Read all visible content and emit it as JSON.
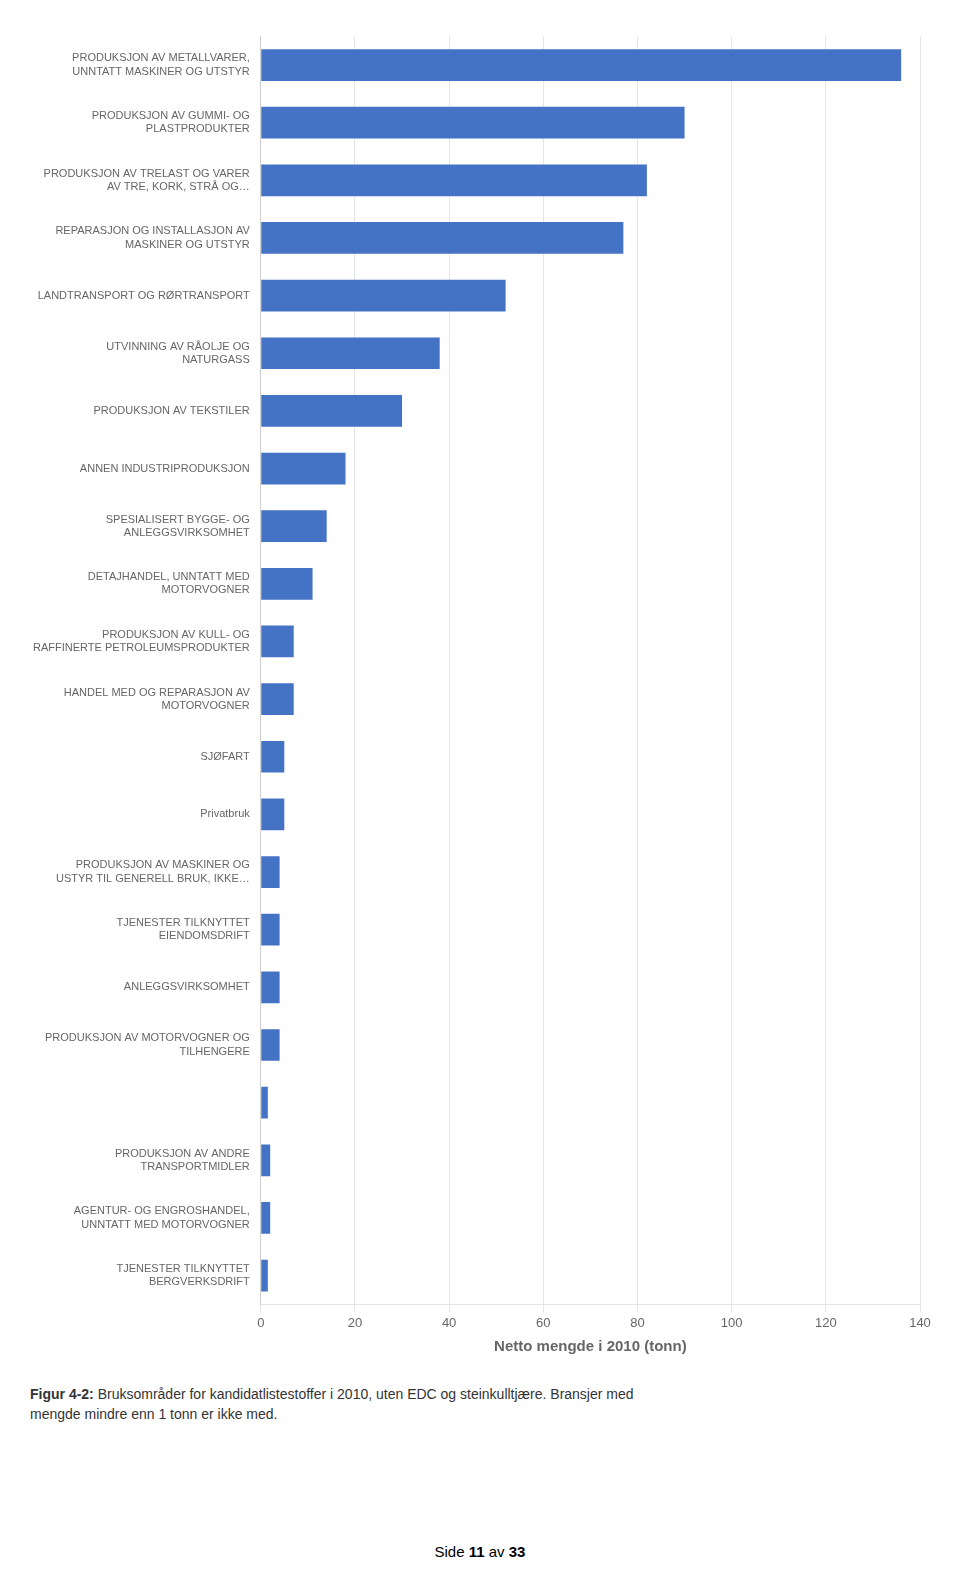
{
  "chart_data": {
    "type": "bar",
    "orientation": "horizontal",
    "categories": [
      "PRODUKSJON AV METALLVARER,\nUNNTATT MASKINER OG UTSTYR",
      "PRODUKSJON AV GUMMI- OG\nPLASTPRODUKTER",
      "PRODUKSJON AV TRELAST OG VARER\nAV TRE, KORK, STRÅ OG…",
      "REPARASJON OG INSTALLASJON AV\nMASKINER OG UTSTYR",
      "LANDTRANSPORT OG RØRTRANSPORT",
      "UTVINNING AV RÅOLJE OG\nNATURGASS",
      "PRODUKSJON AV TEKSTILER",
      "ANNEN INDUSTRIPRODUKSJON",
      "SPESIALISERT BYGGE- OG\nANLEGGSVIRKSOMHET",
      "DETAJHANDEL, UNNTATT MED\nMOTORVOGNER",
      "PRODUKSJON AV KULL- OG\nRAFFINERTE PETROLEUMSPRODUKTER",
      "HANDEL MED OG REPARASJON AV\nMOTORVOGNER",
      "SJØFART",
      "Privatbruk",
      "PRODUKSJON AV MASKINER OG\nUSTYR TIL GENERELL BRUK, IKKE…",
      "TJENESTER TILKNYTTET\nEIENDOMSDRIFT",
      "ANLEGGSVIRKSOMHET",
      "PRODUKSJON AV MOTORVOGNER OG\nTILHENGERE",
      null,
      "PRODUKSJON AV ANDRE\nTRANSPORTMIDLER",
      "AGENTUR- OG ENGROSHANDEL,\nUNNTATT MED MOTORVOGNER",
      "TJENESTER TILKNYTTET\nBERGVERKSDRIFT"
    ],
    "values": [
      136,
      90,
      82,
      77,
      52,
      38,
      30,
      18,
      14,
      11,
      7,
      7,
      5,
      5,
      4,
      4,
      4,
      4,
      1.5,
      2,
      2,
      1.5
    ],
    "color": "#4472C4",
    "xlabel": "Netto mengde i 2010 (tonn)",
    "xlim": [
      0,
      140
    ],
    "xticks": [
      0,
      20,
      40,
      60,
      80,
      100,
      120,
      140
    ],
    "grid": true,
    "caption_bold": "Figur 4-2:",
    "caption": " Bruksområder for kandidatlistestoffer i 2010, uten EDC og steinkulltjære. Bransjer med\nmengde mindre enn 1 tonn er ikke med.",
    "footer": [
      "Side ",
      "11",
      " av ",
      "33"
    ]
  }
}
